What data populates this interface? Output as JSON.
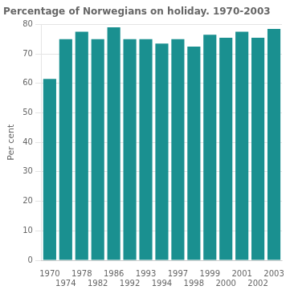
{
  "chart_data": {
    "type": "bar",
    "title": "Percentage of Norwegians on holiday. 1970-2003",
    "ylabel": "Per cent",
    "categories": [
      "1970",
      "1974",
      "1978",
      "1982",
      "1986",
      "1992",
      "1993",
      "1994",
      "1997",
      "1998",
      "1999",
      "2000",
      "2001",
      "2002",
      "2003"
    ],
    "values": [
      61.5,
      75.0,
      77.5,
      75.0,
      79.0,
      75.0,
      75.0,
      73.5,
      75.0,
      72.5,
      76.5,
      75.5,
      77.5,
      75.5,
      78.5
    ],
    "color": "#1a9090",
    "ylim": [
      0,
      80
    ],
    "yticks": [
      0,
      10,
      20,
      30,
      40,
      50,
      60,
      70,
      80
    ],
    "grid": true
  }
}
